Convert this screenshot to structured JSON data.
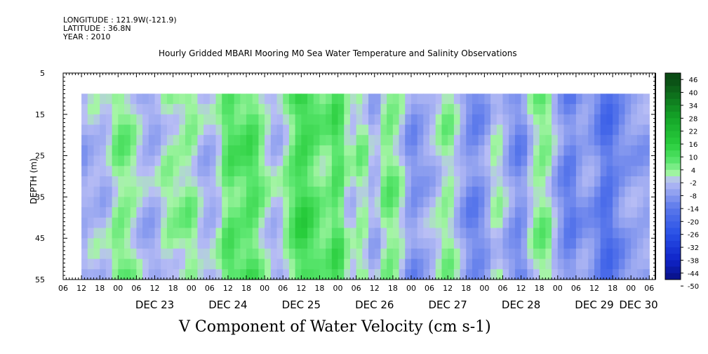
{
  "header": {
    "longitude": "LONGITUDE : 121.9W(-121.9)",
    "latitude": "LATITUDE : 36.8N",
    "year": "YEAR : 2010"
  },
  "chart_data": {
    "type": "heatmap",
    "title": "Hourly Gridded MBARI Mooring M0 Sea Water Temperature and Salinity Observations",
    "xlabel": "V Component of Water Velocity (cm s-1)",
    "ylabel": "DEPTH (m)",
    "x_start": "DEC 22 06:00",
    "x_end": "DEC 30 08:00",
    "data_start": "DEC 22 12:00",
    "data_end": "DEC 30 06:00",
    "ylim": [
      55,
      5
    ],
    "depth_range": [
      10,
      55
    ],
    "y_ticks": [
      "5",
      "15",
      "25",
      "35",
      "45",
      "55"
    ],
    "x_hour_ticks": [
      "06",
      "12",
      "18",
      "00",
      "06",
      "12",
      "18",
      "00",
      "06",
      "12",
      "18",
      "00",
      "06",
      "12",
      "18",
      "00",
      "06",
      "12",
      "18",
      "00",
      "06",
      "12",
      "18",
      "00",
      "06",
      "12",
      "18",
      "00",
      "06",
      "12",
      "18",
      "00",
      "06"
    ],
    "x_day_labels": [
      "DEC 23",
      "DEC 24",
      "DEC 25",
      "DEC 26",
      "DEC 27",
      "DEC 28",
      "DEC 29",
      "DEC 30"
    ],
    "colorbar": {
      "labels": [
        "46",
        "40",
        "34",
        "28",
        "22",
        "16",
        "10",
        "4",
        "-2",
        "-8",
        "-14",
        "-20",
        "-26",
        "-32",
        "-38",
        "-44",
        "-50"
      ]
    },
    "columns": [
      {
        "t": 0,
        "v": -6
      },
      {
        "t": 4,
        "v": -2
      },
      {
        "t": 8,
        "v": -4
      },
      {
        "t": 12,
        "v": 6
      },
      {
        "t": 16,
        "v": 4
      },
      {
        "t": 20,
        "v": -3
      },
      {
        "t": 24,
        "v": -5
      },
      {
        "t": 28,
        "v": 3
      },
      {
        "t": 32,
        "v": 2
      },
      {
        "t": 36,
        "v": 5
      },
      {
        "t": 40,
        "v": -4
      },
      {
        "t": 44,
        "v": -3
      },
      {
        "t": 48,
        "v": 10
      },
      {
        "t": 52,
        "v": 7
      },
      {
        "t": 56,
        "v": 11
      },
      {
        "t": 60,
        "v": 2
      },
      {
        "t": 64,
        "v": -4
      },
      {
        "t": 68,
        "v": 5
      },
      {
        "t": 72,
        "v": 14
      },
      {
        "t": 76,
        "v": 9
      },
      {
        "t": 80,
        "v": 4
      },
      {
        "t": 84,
        "v": 12
      },
      {
        "t": 88,
        "v": -2
      },
      {
        "t": 92,
        "v": 5
      },
      {
        "t": 96,
        "v": -6
      },
      {
        "t": 100,
        "v": 7
      },
      {
        "t": 104,
        "v": 3
      },
      {
        "t": 108,
        "v": -10
      },
      {
        "t": 112,
        "v": -6
      },
      {
        "t": 116,
        "v": -2
      },
      {
        "t": 120,
        "v": 5
      },
      {
        "t": 124,
        "v": -4
      },
      {
        "t": 128,
        "v": -12
      },
      {
        "t": 132,
        "v": -8
      },
      {
        "t": 136,
        "v": 3
      },
      {
        "t": 140,
        "v": -6
      },
      {
        "t": 144,
        "v": -12
      },
      {
        "t": 148,
        "v": 2
      },
      {
        "t": 152,
        "v": 6
      },
      {
        "t": 156,
        "v": -6
      },
      {
        "t": 160,
        "v": -14
      },
      {
        "t": 164,
        "v": -6
      },
      {
        "t": 168,
        "v": -8
      },
      {
        "t": 172,
        "v": -18
      },
      {
        "t": 176,
        "v": -10
      },
      {
        "t": 180,
        "v": -6
      },
      {
        "t": 186,
        "v": -6
      }
    ]
  }
}
